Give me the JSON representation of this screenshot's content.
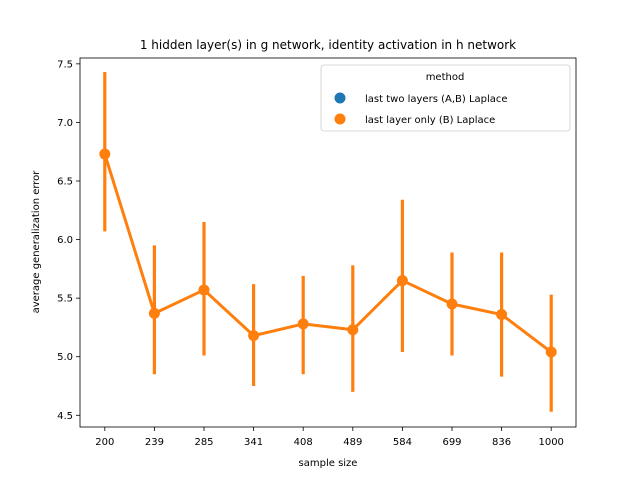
{
  "chart_data": {
    "type": "line",
    "title": "1 hidden layer(s) in g network, identity activation in h network",
    "xlabel": "sample size",
    "ylabel": "average generalization error",
    "categories": [
      "200",
      "239",
      "285",
      "341",
      "408",
      "489",
      "584",
      "699",
      "836",
      "1000"
    ],
    "ylim": [
      4.4,
      7.55
    ],
    "yticks": [
      4.5,
      5.0,
      5.5,
      6.0,
      6.5,
      7.0,
      7.5
    ],
    "ytick_labels": [
      "4.5",
      "5.0",
      "5.5",
      "6.0",
      "6.5",
      "7.0",
      "7.5"
    ],
    "legend": {
      "title": "method",
      "position": "top-right",
      "entries": [
        {
          "label": "last two layers (A,B) Laplace",
          "color": "#1f77b4"
        },
        {
          "label": "last layer only (B) Laplace",
          "color": "#ff7f0e"
        }
      ]
    },
    "series": [
      {
        "name": "last layer only (B) Laplace",
        "color": "#ff7f0e",
        "values": [
          6.73,
          5.37,
          5.57,
          5.18,
          5.28,
          5.23,
          5.65,
          5.45,
          5.36,
          5.04
        ],
        "ci_low": [
          6.07,
          4.85,
          5.01,
          4.75,
          4.85,
          4.7,
          5.04,
          5.01,
          4.83,
          4.53
        ],
        "ci_high": [
          7.43,
          5.95,
          6.15,
          5.62,
          5.69,
          5.78,
          6.34,
          5.89,
          5.89,
          5.53
        ]
      }
    ]
  }
}
